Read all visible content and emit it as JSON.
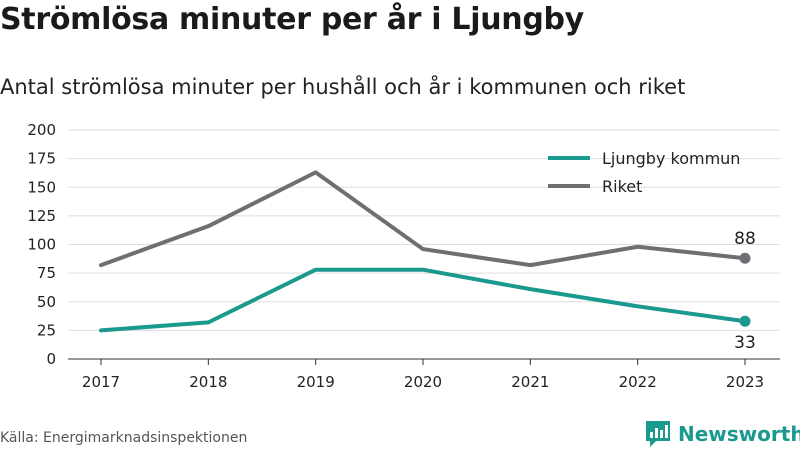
{
  "header": {
    "title": "Strömlösa minuter per år i Ljungby",
    "subtitle": "Antal strömlösa minuter per hushåll och år i kommunen och riket"
  },
  "footer": {
    "source": "Källa: Energimarknadsinspektionen",
    "brand": "Newsworthy"
  },
  "colors": {
    "ljungby": "#1a9a8e",
    "riket": "#6e6e73",
    "grid": "#dddddd",
    "text": "#222222"
  },
  "chart_data": {
    "type": "line",
    "categories": [
      "2017",
      "2018",
      "2019",
      "2020",
      "2021",
      "2022",
      "2023"
    ],
    "series": [
      {
        "name": "Ljungby kommun",
        "values": [
          25,
          32,
          78,
          78,
          61,
          46,
          33
        ],
        "end_label": "33"
      },
      {
        "name": "Riket",
        "values": [
          82,
          116,
          163,
          96,
          82,
          98,
          88
        ],
        "end_label": "88"
      }
    ],
    "ylim": [
      0,
      200
    ],
    "yticks": [
      "0",
      "25",
      "50",
      "75",
      "100",
      "125",
      "150",
      "175",
      "200"
    ],
    "grid": true,
    "legend_position": "top-right"
  }
}
